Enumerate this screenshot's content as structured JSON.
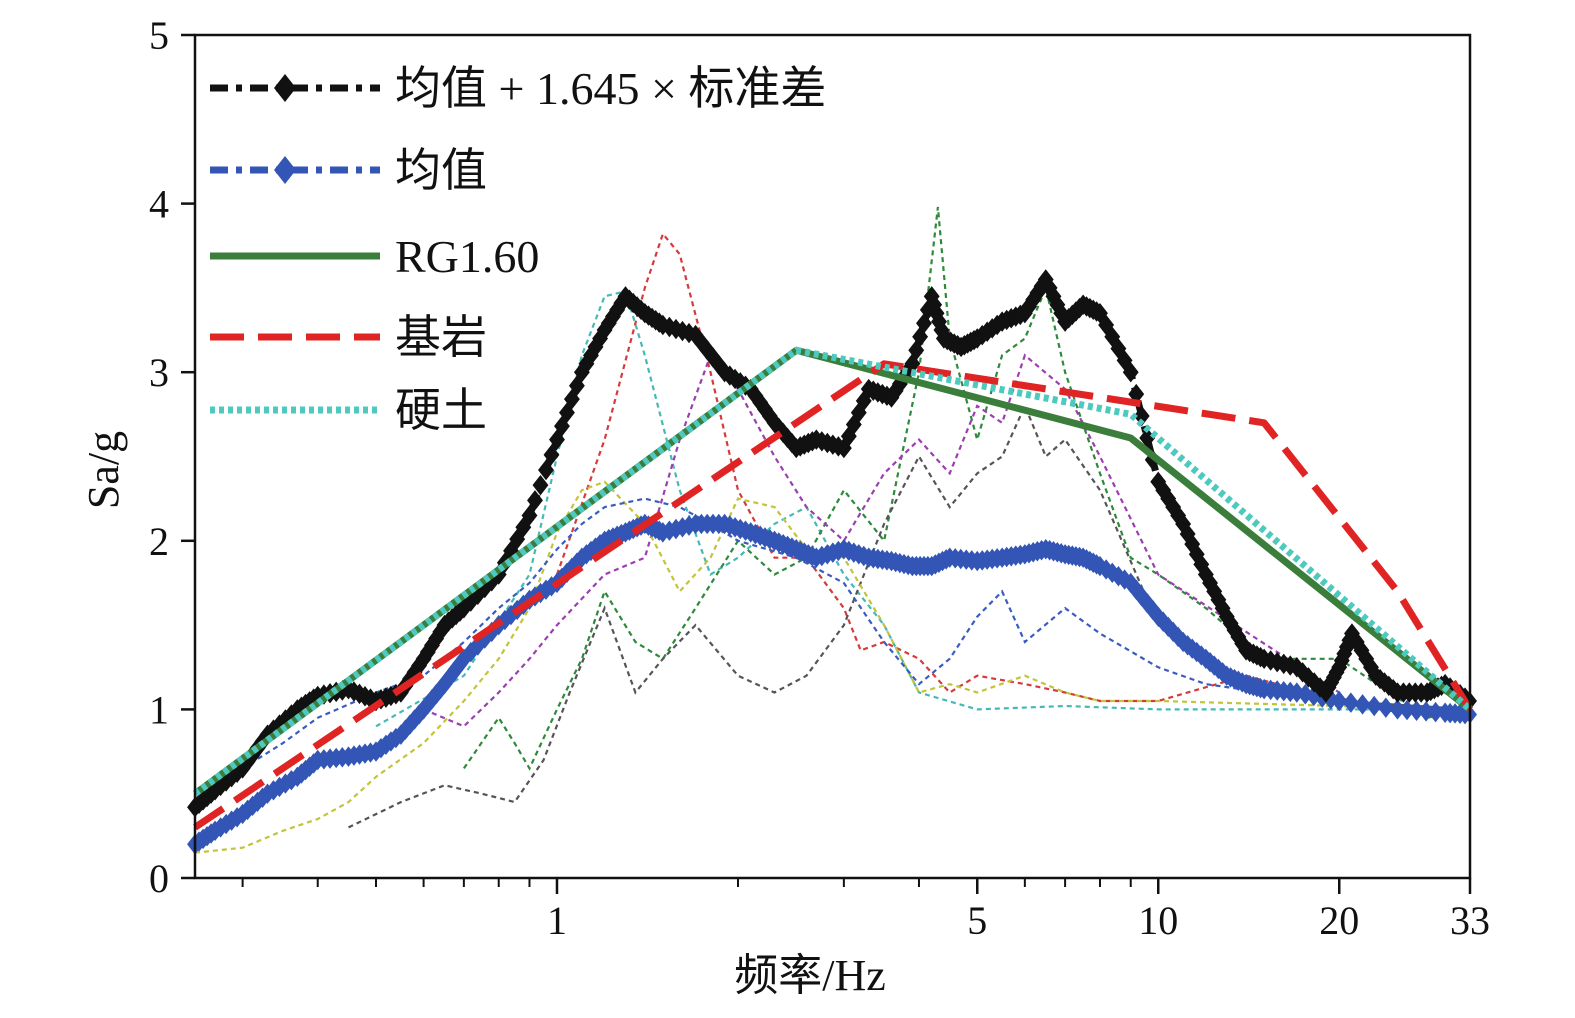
{
  "chart_data": {
    "type": "line",
    "xlabel": "频率/Hz",
    "ylabel": "Sa/g",
    "x_scale": "log",
    "xlim": [
      0.25,
      33
    ],
    "ylim": [
      0,
      5
    ],
    "x_ticks": [
      1,
      5,
      10,
      20,
      33
    ],
    "x_tick_labels": [
      "1",
      "5",
      "10",
      "20",
      "33"
    ],
    "x_minor_ticks": [
      0.3,
      0.4,
      0.5,
      0.6,
      0.7,
      0.8,
      0.9,
      2,
      3,
      4,
      6,
      7,
      8,
      9
    ],
    "y_ticks": [
      0,
      1,
      2,
      3,
      4,
      5
    ],
    "y_tick_labels": [
      "0",
      "1",
      "2",
      "3",
      "4",
      "5"
    ],
    "legend_position": "top-left",
    "series": [
      {
        "name": "均值 + 1.645 × 标准差",
        "color": "#111111",
        "style": "dashdot-diamond",
        "x": [
          0.25,
          0.27,
          0.3,
          0.33,
          0.37,
          0.4,
          0.45,
          0.5,
          0.55,
          0.6,
          0.65,
          0.7,
          0.8,
          0.9,
          1.0,
          1.1,
          1.2,
          1.3,
          1.4,
          1.5,
          1.7,
          1.9,
          2.1,
          2.3,
          2.5,
          2.7,
          3.0,
          3.3,
          3.6,
          3.9,
          4.2,
          4.4,
          4.7,
          5.0,
          5.5,
          6.0,
          6.5,
          7.0,
          7.5,
          8.0,
          9.0,
          10,
          11,
          12,
          13,
          14,
          15,
          17,
          19,
          20,
          21,
          23,
          25,
          28,
          30,
          33
        ],
        "y": [
          0.42,
          0.52,
          0.65,
          0.85,
          1.0,
          1.08,
          1.12,
          1.05,
          1.1,
          1.3,
          1.5,
          1.6,
          1.8,
          2.15,
          2.6,
          3.0,
          3.25,
          3.45,
          3.35,
          3.28,
          3.22,
          3.0,
          2.9,
          2.7,
          2.55,
          2.6,
          2.55,
          2.9,
          2.85,
          3.05,
          3.45,
          3.2,
          3.15,
          3.2,
          3.3,
          3.35,
          3.55,
          3.3,
          3.4,
          3.35,
          3.0,
          2.35,
          2.1,
          1.8,
          1.55,
          1.35,
          1.3,
          1.25,
          1.1,
          1.25,
          1.45,
          1.2,
          1.1,
          1.1,
          1.15,
          1.05
        ]
      },
      {
        "name": "均值",
        "color": "#3355b5",
        "style": "dashdot-diamond",
        "x": [
          0.25,
          0.27,
          0.3,
          0.33,
          0.37,
          0.4,
          0.45,
          0.5,
          0.55,
          0.6,
          0.65,
          0.7,
          0.8,
          0.9,
          1.0,
          1.1,
          1.2,
          1.3,
          1.4,
          1.5,
          1.7,
          1.9,
          2.1,
          2.3,
          2.5,
          2.7,
          3.0,
          3.3,
          3.6,
          3.9,
          4.2,
          4.5,
          5.0,
          5.5,
          6.0,
          6.5,
          7.0,
          7.5,
          8.0,
          9.0,
          10,
          11,
          12,
          13,
          14,
          15,
          17,
          20,
          25,
          30,
          33
        ],
        "y": [
          0.2,
          0.28,
          0.38,
          0.5,
          0.6,
          0.7,
          0.72,
          0.75,
          0.85,
          1.0,
          1.15,
          1.3,
          1.5,
          1.65,
          1.75,
          1.9,
          2.0,
          2.05,
          2.1,
          2.05,
          2.1,
          2.1,
          2.05,
          2.0,
          1.95,
          1.9,
          1.95,
          1.9,
          1.88,
          1.85,
          1.85,
          1.9,
          1.88,
          1.9,
          1.92,
          1.95,
          1.92,
          1.9,
          1.85,
          1.75,
          1.55,
          1.4,
          1.3,
          1.2,
          1.15,
          1.12,
          1.1,
          1.05,
          1.0,
          0.98,
          0.97
        ]
      },
      {
        "name": "RG1.60",
        "color": "#3b7d3b",
        "style": "solid",
        "x": [
          0.25,
          2.5,
          9.0,
          33
        ],
        "y": [
          0.5,
          3.13,
          2.61,
          1.0
        ]
      },
      {
        "name": "基岩",
        "color": "#e02424",
        "style": "dash",
        "x": [
          0.25,
          3.5,
          15,
          25,
          33
        ],
        "y": [
          0.3,
          3.05,
          2.7,
          1.7,
          1.0
        ]
      },
      {
        "name": "硬土",
        "color": "#4ec9c0",
        "style": "dotted",
        "x": [
          0.25,
          2.5,
          9.0,
          33
        ],
        "y": [
          0.5,
          3.13,
          2.75,
          1.0
        ]
      }
    ],
    "background_records": [
      {
        "color": "#d63a3a",
        "x": [
          1.0,
          1.2,
          1.4,
          1.5,
          1.6,
          1.8,
          2.0,
          2.3,
          2.6,
          3.0,
          3.2,
          3.5,
          4.0,
          4.5,
          5.0,
          6.0,
          7.0,
          8.0,
          10,
          14,
          20,
          33
        ],
        "y": [
          1.8,
          2.6,
          3.5,
          3.82,
          3.7,
          3.0,
          2.3,
          1.9,
          1.9,
          1.6,
          1.35,
          1.4,
          1.3,
          1.1,
          1.2,
          1.15,
          1.1,
          1.05,
          1.05,
          1.2,
          1.05,
          1.0
        ]
      },
      {
        "color": "#45b9b5",
        "x": [
          0.5,
          0.7,
          0.9,
          1.0,
          1.1,
          1.2,
          1.3,
          1.4,
          1.6,
          1.8,
          2.0,
          2.3,
          2.6,
          3.0,
          3.5,
          4.0,
          5.0,
          7.0,
          10,
          20,
          33
        ],
        "y": [
          0.9,
          1.2,
          1.8,
          2.5,
          3.1,
          3.45,
          3.48,
          3.1,
          2.3,
          1.8,
          1.9,
          2.1,
          2.2,
          1.8,
          1.5,
          1.1,
          1.0,
          1.02,
          1.0,
          1.0,
          1.0
        ]
      },
      {
        "color": "#2e8a3a",
        "x": [
          0.7,
          0.8,
          0.85,
          0.9,
          1.0,
          1.1,
          1.2,
          1.35,
          1.5,
          1.7,
          2.0,
          2.3,
          2.6,
          3.0,
          3.5,
          4.0,
          4.3,
          4.5,
          5.0,
          5.5,
          6.0,
          6.5,
          7.0,
          8.0,
          9.0,
          10,
          12,
          15,
          20,
          28,
          33
        ],
        "y": [
          0.65,
          0.95,
          0.8,
          0.65,
          1.0,
          1.3,
          1.7,
          1.4,
          1.3,
          1.6,
          2.0,
          1.8,
          1.9,
          2.3,
          2.0,
          3.0,
          3.98,
          3.2,
          2.6,
          3.1,
          3.2,
          3.5,
          3.0,
          2.4,
          1.9,
          1.8,
          1.6,
          1.3,
          1.3,
          0.95,
          1.0
        ]
      },
      {
        "color": "#9b3fb0",
        "x": [
          0.6,
          0.7,
          0.8,
          0.9,
          1.0,
          1.2,
          1.4,
          1.6,
          1.8,
          2.0,
          2.3,
          2.6,
          3.0,
          3.5,
          4.0,
          4.5,
          5.0,
          5.5,
          6.0,
          7.0,
          8.0,
          10,
          20
        ],
        "y": [
          1.0,
          0.9,
          1.1,
          1.3,
          1.5,
          1.8,
          1.9,
          2.6,
          3.1,
          2.9,
          2.5,
          2.2,
          2.0,
          2.4,
          2.6,
          2.4,
          2.8,
          2.7,
          3.1,
          2.9,
          2.5,
          1.8,
          1.1
        ]
      },
      {
        "color": "#555555",
        "x": [
          0.45,
          0.55,
          0.65,
          0.75,
          0.85,
          0.95,
          1.05,
          1.2,
          1.35,
          1.5,
          1.7,
          2.0,
          2.3,
          2.6,
          3.0,
          3.5,
          4.0,
          4.5,
          5.0,
          5.5,
          6.0,
          6.5,
          7.0,
          8.0,
          10,
          15,
          20,
          33
        ],
        "y": [
          0.3,
          0.45,
          0.55,
          0.5,
          0.45,
          0.7,
          1.1,
          1.6,
          1.1,
          1.3,
          1.5,
          1.2,
          1.1,
          1.2,
          1.5,
          2.1,
          2.5,
          2.2,
          2.4,
          2.5,
          2.8,
          2.5,
          2.6,
          2.3,
          1.5,
          1.1,
          1.05,
          1.0
        ]
      },
      {
        "color": "#c2c43a",
        "x": [
          0.25,
          0.3,
          0.35,
          0.4,
          0.45,
          0.5,
          0.6,
          0.7,
          0.8,
          0.9,
          1.0,
          1.1,
          1.2,
          1.4,
          1.6,
          1.8,
          2.0,
          2.3,
          2.6,
          3.0,
          3.5,
          4.0,
          4.5,
          5.0,
          6.0,
          7.0,
          8.0,
          10,
          20,
          33
        ],
        "y": [
          0.15,
          0.18,
          0.28,
          0.35,
          0.45,
          0.6,
          0.8,
          1.05,
          1.3,
          1.6,
          2.05,
          2.3,
          2.35,
          2.1,
          1.7,
          1.9,
          2.25,
          2.2,
          1.95,
          1.9,
          1.5,
          1.1,
          1.15,
          1.1,
          1.2,
          1.1,
          1.05,
          1.05,
          1.02,
          1.0
        ]
      },
      {
        "color": "#3a5cc0",
        "x": [
          0.25,
          0.3,
          0.35,
          0.4,
          0.5,
          0.6,
          0.7,
          0.8,
          0.9,
          1.0,
          1.1,
          1.2,
          1.4,
          1.6,
          1.8,
          2.0,
          2.5,
          3.0,
          3.5,
          4.0,
          4.5,
          5.0,
          5.5,
          6.0,
          7.0,
          8.0,
          10,
          12,
          15,
          20,
          33
        ],
        "y": [
          0.5,
          0.65,
          0.8,
          0.95,
          1.1,
          1.2,
          1.4,
          1.6,
          1.75,
          1.95,
          2.1,
          2.2,
          2.25,
          2.2,
          2.1,
          2.0,
          1.9,
          1.75,
          1.4,
          1.15,
          1.3,
          1.55,
          1.7,
          1.4,
          1.6,
          1.45,
          1.25,
          1.15,
          1.1,
          1.05,
          1.0
        ]
      }
    ]
  }
}
